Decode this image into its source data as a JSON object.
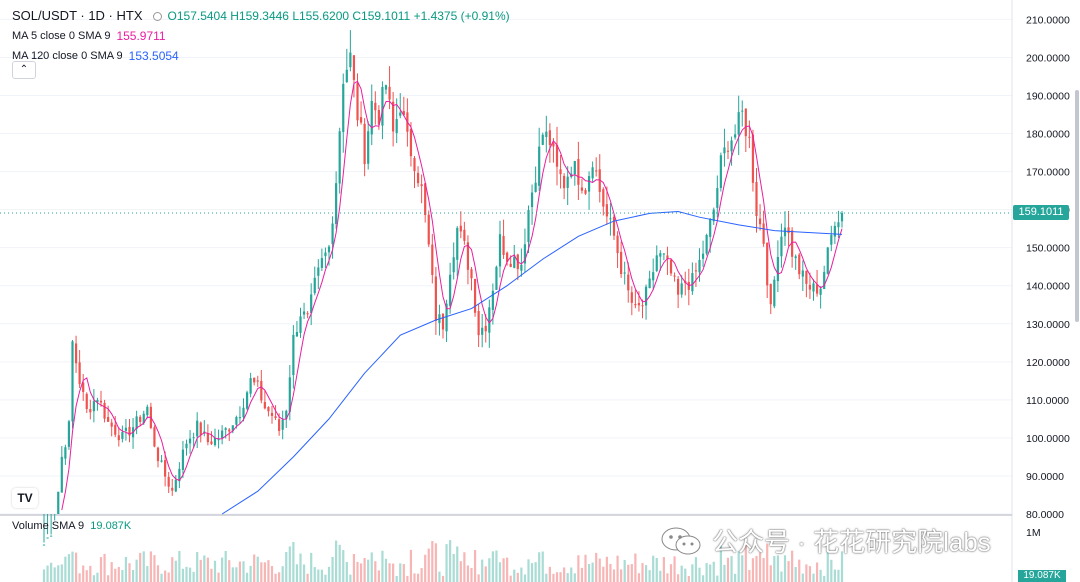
{
  "header": {
    "symbol": "SOL/USDT · 1D · HTX",
    "open": "O157.5404",
    "high": "H159.3446",
    "low": "L155.6200",
    "close": "C159.1011",
    "change": "+1.4375 (+0.91%)"
  },
  "indicators": [
    {
      "label": "MA 5 close 0 SMA 9",
      "value": "155.9711",
      "color": "#e91ea0"
    },
    {
      "label": "MA 120 close 0 SMA 9",
      "value": "153.5054",
      "color": "#2962ff"
    }
  ],
  "volume_label": "Volume SMA 9",
  "volume_value": "19.087K",
  "volume_axis_value": "19.087K",
  "volume_axis_tick": "1M",
  "collapse_icon": "chevron-up-icon",
  "current_price_label": "159.1011",
  "watermark": "公众号 · 花花研究院labs",
  "colors": {
    "up": "#26a69a",
    "down": "#ef5350",
    "ma5": "#e91ea0",
    "ma120": "#2962ff",
    "last_price": "#26a69a"
  },
  "chart_data": {
    "type": "candlestick",
    "y_ticks": [
      "80.0000",
      "90.0000",
      "100.0000",
      "110.0000",
      "120.0000",
      "130.0000",
      "140.0000",
      "150.0000",
      "160.0000",
      "170.0000",
      "180.0000",
      "190.0000",
      "200.0000",
      "210.0000"
    ],
    "ylim": [
      80,
      213
    ],
    "last_price": 159.1011,
    "close_path_anchors": [
      [
        0,
        72
      ],
      [
        3,
        77
      ],
      [
        5,
        95
      ],
      [
        7,
        103
      ],
      [
        8,
        125
      ],
      [
        10,
        115
      ],
      [
        12,
        107
      ],
      [
        15,
        111
      ],
      [
        18,
        104
      ],
      [
        22,
        100
      ],
      [
        26,
        104
      ],
      [
        29,
        108
      ],
      [
        30,
        102
      ],
      [
        32,
        95
      ],
      [
        34,
        90
      ],
      [
        36,
        86
      ],
      [
        38,
        93
      ],
      [
        40,
        99
      ],
      [
        43,
        103
      ],
      [
        46,
        99
      ],
      [
        49,
        100
      ],
      [
        52,
        103
      ],
      [
        55,
        107
      ],
      [
        58,
        115
      ],
      [
        60,
        113
      ],
      [
        62,
        108
      ],
      [
        64,
        106
      ],
      [
        66,
        102
      ],
      [
        68,
        108
      ],
      [
        70,
        126
      ],
      [
        72,
        133
      ],
      [
        74,
        131
      ],
      [
        76,
        140
      ],
      [
        78,
        146
      ],
      [
        80,
        150
      ],
      [
        82,
        168
      ],
      [
        84,
        195
      ],
      [
        86,
        200
      ],
      [
        88,
        185
      ],
      [
        90,
        175
      ],
      [
        92,
        188
      ],
      [
        94,
        185
      ],
      [
        96,
        193
      ],
      [
        98,
        180
      ],
      [
        100,
        188
      ],
      [
        102,
        178
      ],
      [
        104,
        173
      ],
      [
        106,
        165
      ],
      [
        108,
        150
      ],
      [
        110,
        132
      ],
      [
        112,
        130
      ],
      [
        114,
        145
      ],
      [
        116,
        155
      ],
      [
        118,
        150
      ],
      [
        120,
        142
      ],
      [
        122,
        128
      ],
      [
        124,
        130
      ],
      [
        126,
        140
      ],
      [
        128,
        152
      ],
      [
        130,
        148
      ],
      [
        132,
        147
      ],
      [
        134,
        146
      ],
      [
        136,
        160
      ],
      [
        138,
        170
      ],
      [
        140,
        180
      ],
      [
        142,
        178
      ],
      [
        144,
        170
      ],
      [
        146,
        167
      ],
      [
        148,
        172
      ],
      [
        150,
        169
      ],
      [
        152,
        166
      ],
      [
        154,
        174
      ],
      [
        156,
        165
      ],
      [
        158,
        158
      ],
      [
        160,
        153
      ],
      [
        162,
        145
      ],
      [
        164,
        138
      ],
      [
        166,
        133
      ],
      [
        168,
        135
      ],
      [
        170,
        140
      ],
      [
        172,
        148
      ],
      [
        174,
        147
      ],
      [
        176,
        143
      ],
      [
        178,
        137
      ],
      [
        180,
        141
      ],
      [
        182,
        141
      ],
      [
        184,
        146
      ],
      [
        186,
        152
      ],
      [
        188,
        160
      ],
      [
        190,
        172
      ],
      [
        192,
        178
      ],
      [
        194,
        180
      ],
      [
        196,
        185
      ],
      [
        198,
        178
      ],
      [
        200,
        160
      ],
      [
        202,
        152
      ],
      [
        204,
        133
      ],
      [
        206,
        150
      ],
      [
        208,
        157
      ],
      [
        210,
        149
      ],
      [
        212,
        144
      ],
      [
        214,
        140
      ],
      [
        216,
        139
      ],
      [
        218,
        140
      ],
      [
        220,
        148
      ],
      [
        222,
        158
      ],
      [
        224,
        159.1
      ]
    ],
    "ma120_anchors": [
      [
        50,
        80
      ],
      [
        60,
        86
      ],
      [
        70,
        95
      ],
      [
        80,
        105
      ],
      [
        90,
        117
      ],
      [
        100,
        127
      ],
      [
        110,
        131
      ],
      [
        120,
        134
      ],
      [
        130,
        140
      ],
      [
        140,
        147
      ],
      [
        150,
        153
      ],
      [
        160,
        157
      ],
      [
        170,
        159
      ],
      [
        178,
        159.5
      ],
      [
        184,
        158
      ],
      [
        195,
        156
      ],
      [
        205,
        154.5
      ],
      [
        224,
        153.5
      ]
    ],
    "ma5_value": 155.9711,
    "ma120_value": 153.5054
  }
}
